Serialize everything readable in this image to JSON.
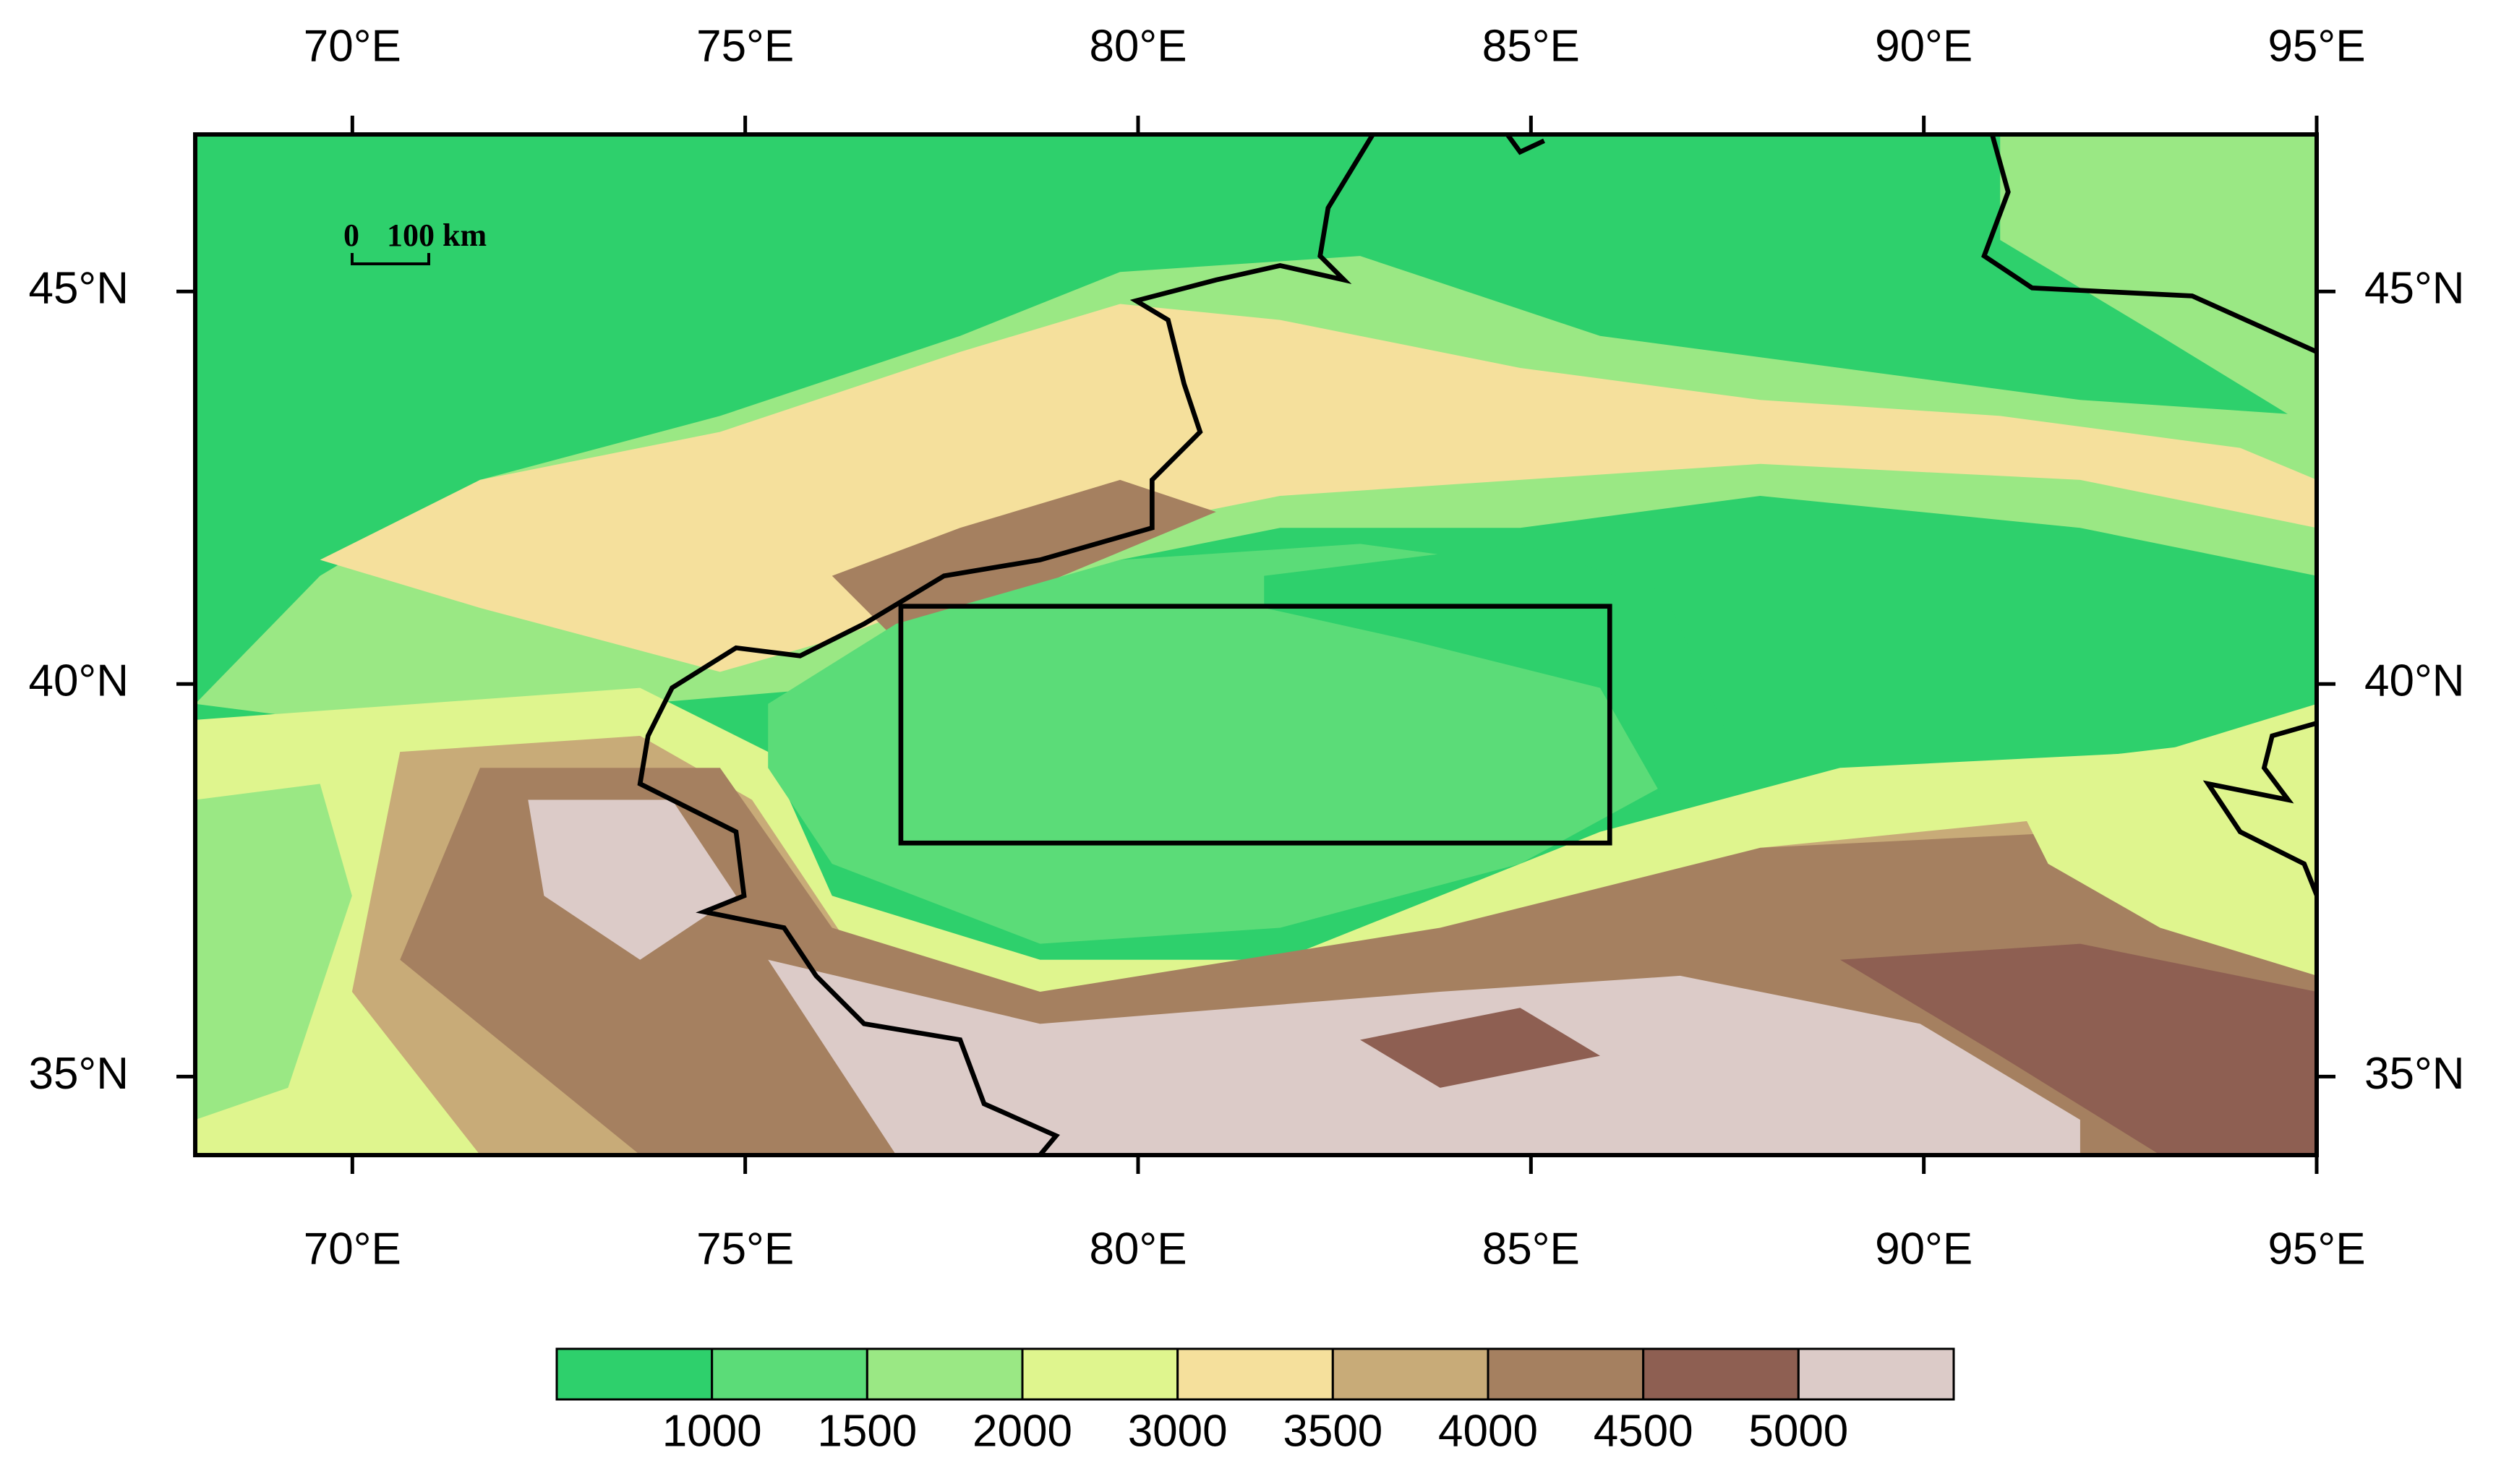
{
  "map": {
    "xlim": [
      68,
      95
    ],
    "ylim": [
      34,
      47
    ],
    "xticks": [
      {
        "value": 70,
        "label": "70°E"
      },
      {
        "value": 75,
        "label": "75°E"
      },
      {
        "value": 80,
        "label": "80°E"
      },
      {
        "value": 85,
        "label": "85°E"
      },
      {
        "value": 90,
        "label": "90°E"
      },
      {
        "value": 95,
        "label": "95°E"
      }
    ],
    "yticks": [
      {
        "value": 35,
        "label": "35°N"
      },
      {
        "value": 40,
        "label": "40°N"
      },
      {
        "value": 45,
        "label": "45°N"
      }
    ],
    "scale_bar": {
      "start_label": "0",
      "end_label": "100 km"
    },
    "colorbar": {
      "colors": [
        "#2ed06c",
        "#5bdc78",
        "#9ae884",
        "#dff58e",
        "#f5e09c",
        "#c8ab78",
        "#a58060",
        "#8e5f52",
        "#dccbc8"
      ],
      "levels": [
        1000,
        1500,
        2000,
        3000,
        3500,
        4000,
        4500,
        5000
      ]
    }
  }
}
